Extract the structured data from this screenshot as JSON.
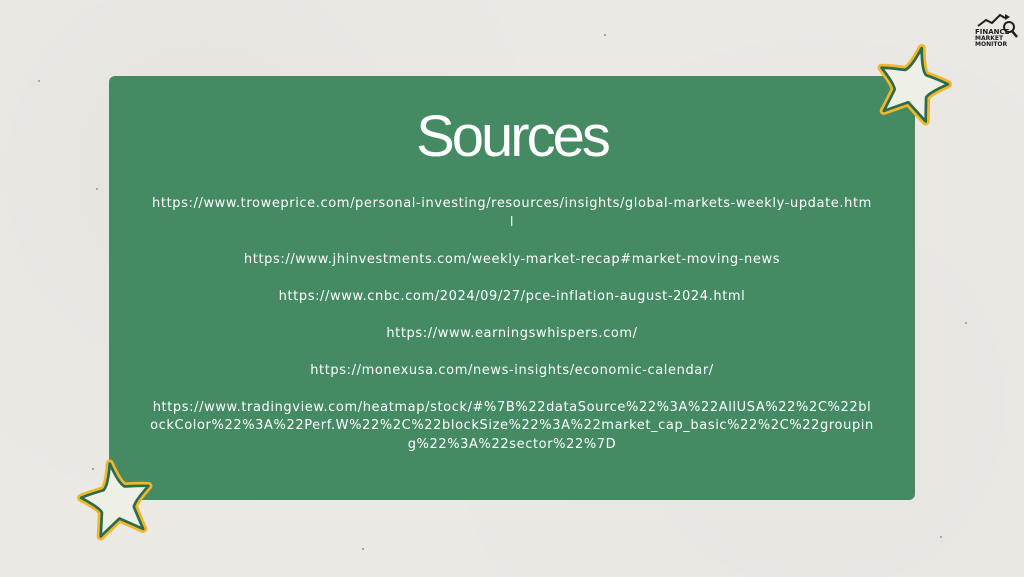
{
  "slide": {
    "title": "Sources",
    "background_color": "#ebe9e4",
    "card_color": "#448a62",
    "text_color": "#ffffff"
  },
  "sources": [
    "https://www.troweprice.com/personal-investing/resources/insights/global-markets-weekly-update.html",
    "https://www.jhinvestments.com/weekly-market-recap#market-moving-news",
    "https://www.cnbc.com/2024/09/27/pce-inflation-august-2024.html",
    "https://www.earningswhispers.com/",
    "https://monexusa.com/news-insights/economic-calendar/",
    "https://www.tradingview.com/heatmap/stock/#%7B%22dataSource%22%3A%22AllUSA%22%2C%22blockColor%22%3A%22Perf.W%22%2C%22blockSize%22%3A%22market_cap_basic%22%2C%22grouping%22%3A%22sector%22%7D"
  ],
  "decorations": {
    "star_fill": "#eef0e6",
    "star_outline": "#2e6b4a",
    "star_border": "#f1b72b",
    "icons": [
      "star-icon",
      "finance-market-monitor-logo"
    ]
  },
  "logo": {
    "line1": "FINANCE",
    "line2": "MARKET",
    "line3": "MONITOR"
  }
}
